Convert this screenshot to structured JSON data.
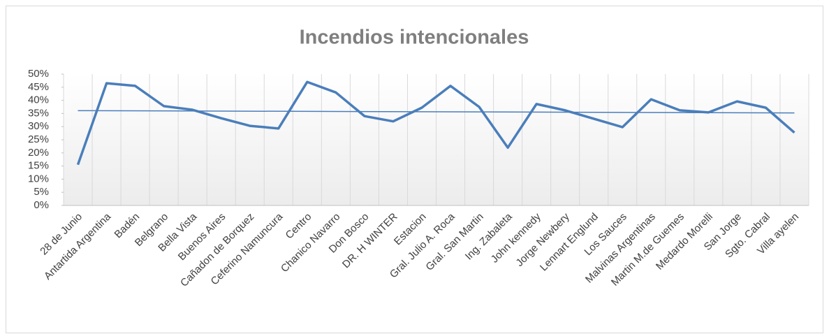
{
  "chart_data": {
    "type": "line",
    "title": "Incendios intencionales",
    "categories": [
      "28 de Junio",
      "Antartida Argentina",
      "Badén",
      "Belgrano",
      "Bella Vista",
      "Buenos Aires",
      "Cañadon de Borquez",
      "Ceferino Namuncura",
      "Centro",
      "Chanico Navarro",
      "Don Bosco",
      "DR. H WINTER",
      "Estacion",
      "Gral. Julio A. Roca",
      "Gral. San Martin",
      "Ing. Zabaleta",
      "John kennedy",
      "Jorge Newbery",
      "Lennart Englund",
      "Los Sauces",
      "Malvinas Argentinas",
      "Martin M.de Guemes",
      "Medardo Morelli",
      "San Jorge",
      "Sgto. Cabral",
      "Villa ayelen"
    ],
    "values": [
      15.5,
      46.5,
      45.5,
      37.8,
      36.4,
      33.2,
      30.3,
      29.3,
      47,
      43,
      34,
      32,
      37.2,
      45.5,
      37.5,
      22,
      38.6,
      36.2,
      33,
      29.8,
      40.4,
      36.2,
      35.4,
      39.6,
      37.2,
      27.7
    ],
    "color": "#4a7ebb",
    "trendline": "linear",
    "ylim": [
      0,
      50
    ],
    "yticks": [
      {
        "value": 0,
        "label": "0%"
      },
      {
        "value": 5,
        "label": "5%"
      },
      {
        "value": 10,
        "label": "10%"
      },
      {
        "value": 15,
        "label": "15%"
      },
      {
        "value": 20,
        "label": "20%"
      },
      {
        "value": 25,
        "label": "25%"
      },
      {
        "value": 30,
        "label": "30%"
      },
      {
        "value": 35,
        "label": "35%"
      },
      {
        "value": 40,
        "label": "40%"
      },
      {
        "value": 45,
        "label": "45%"
      },
      {
        "value": 50,
        "label": "50%"
      }
    ],
    "grid": "vertical"
  }
}
